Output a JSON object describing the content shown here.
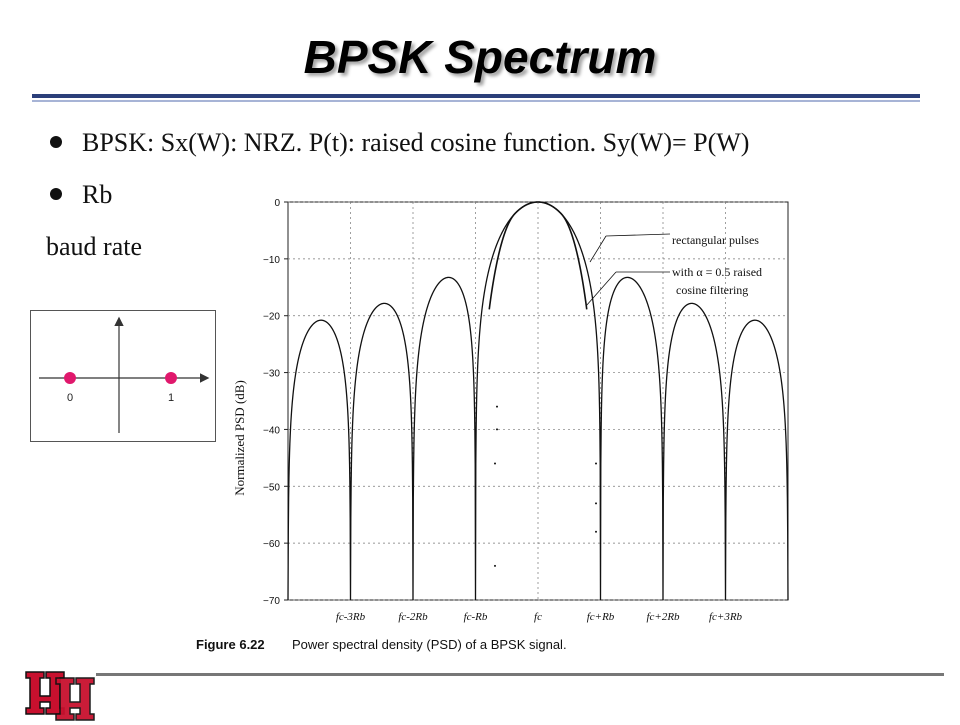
{
  "slide": {
    "title": "BPSK Spectrum",
    "bullets": [
      "BPSK: Sx(W): NRZ. P(t): raised cosine function. Sy(W)= P(W)",
      "Rb"
    ],
    "extra_text": "baud rate"
  },
  "constellation": {
    "labels": [
      "0",
      "1"
    ],
    "point_color": "#e0186c"
  },
  "chart_data": {
    "type": "line",
    "title": "",
    "caption_label": "Figure 6.22",
    "caption_text": "Power spectral density (PSD) of a BPSK signal.",
    "ylabel": "Normalized PSD (dB)",
    "xlabel": "",
    "ylim": [
      -70,
      0
    ],
    "xlim": [
      -4,
      4
    ],
    "yticks": [
      0,
      -10,
      -20,
      -30,
      -40,
      -50,
      -60,
      -70
    ],
    "ytick_labels": [
      "0",
      "−10",
      "−20",
      "−30",
      "−40",
      "−50",
      "−60",
      "−70"
    ],
    "xticks": [
      -3,
      -2,
      -1,
      0,
      1,
      2,
      3
    ],
    "xtick_labels": [
      "fc-3Rb",
      "fc-2Rb",
      "fc-Rb",
      "fc",
      "fc+Rb",
      "fc+2Rb",
      "fc+3Rb"
    ],
    "grid": true,
    "series": [
      {
        "name": "rectangular pulses",
        "description": "sinc-squared spectrum; side lobe peaks in dB",
        "lobe_peaks_db": [
          -22,
          -18,
          -13.5,
          0,
          -13.5,
          -18,
          -22
        ]
      },
      {
        "name": "with α = 0.5 raised cosine filtering",
        "description": "band-limited spectrum, drops to floor beyond ±0.75Rb"
      }
    ],
    "annotations": [
      {
        "text": "rectangular pulses",
        "target_series": 0
      },
      {
        "text": "with α = 0.5 raised",
        "target_series": 1
      },
      {
        "text": "cosine filtering",
        "target_series": 1
      }
    ]
  },
  "colors": {
    "title_rule": "#2b3f7a",
    "logo_red": "#c8102e"
  }
}
